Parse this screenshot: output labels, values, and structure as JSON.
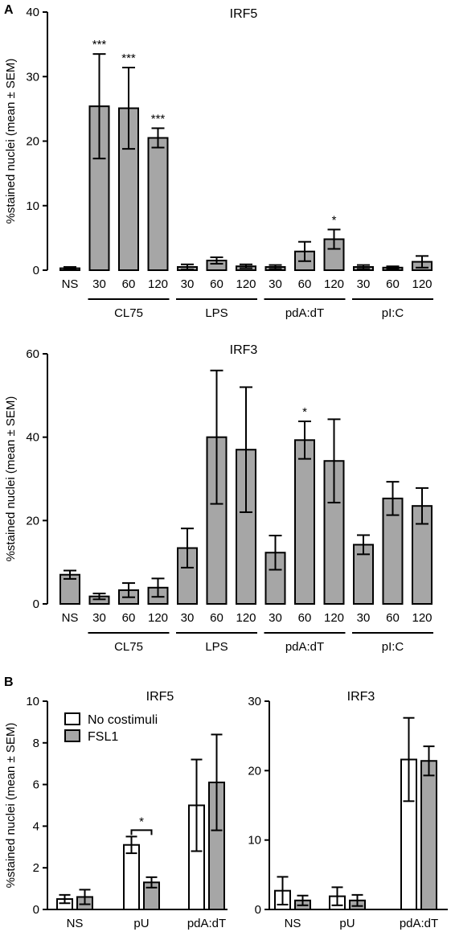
{
  "colors": {
    "gray": "#a6a6a6",
    "white": "#ffffff",
    "stroke": "#000000"
  },
  "panel_labels": {
    "A": "A",
    "B": "B"
  },
  "chart_data": [
    {
      "type": "bar",
      "title": "IRF5",
      "ylabel": "%stained nuclei (mean ± SEM)",
      "ylim": [
        0,
        40
      ],
      "yticks": [
        0,
        10,
        20,
        30,
        40
      ],
      "categories": [
        "NS",
        "30",
        "60",
        "120",
        "30",
        "60",
        "120",
        "30",
        "60",
        "120",
        "30",
        "60",
        "120"
      ],
      "values": [
        0.3,
        25.4,
        25.1,
        20.5,
        0.5,
        1.5,
        0.6,
        0.5,
        2.9,
        4.8,
        0.5,
        0.4,
        1.3
      ],
      "errors": [
        0.2,
        8.1,
        6.3,
        1.5,
        0.4,
        0.5,
        0.3,
        0.3,
        1.5,
        1.5,
        0.3,
        0.2,
        0.9
      ],
      "significance": [
        "",
        "***",
        "***",
        "***",
        "",
        "",
        "",
        "",
        "",
        "*",
        "",
        "",
        ""
      ],
      "groups": [
        {
          "label": "CL75",
          "start": 1,
          "end": 3
        },
        {
          "label": "LPS",
          "start": 4,
          "end": 6
        },
        {
          "label": "pdA:dT",
          "start": 7,
          "end": 9
        },
        {
          "label": "pI:C",
          "start": 10,
          "end": 12
        }
      ]
    },
    {
      "type": "bar",
      "title": "IRF3",
      "ylabel": "%stained nuclei (mean ± SEM)",
      "ylim": [
        0,
        60
      ],
      "yticks": [
        0,
        20,
        40,
        60
      ],
      "categories": [
        "NS",
        "30",
        "60",
        "120",
        "30",
        "60",
        "120",
        "30",
        "60",
        "120",
        "30",
        "60",
        "120"
      ],
      "values": [
        7,
        1.8,
        3.3,
        3.9,
        13.4,
        40,
        37,
        12.3,
        39.3,
        34.3,
        14.2,
        25.3,
        23.5
      ],
      "errors": [
        1.0,
        0.7,
        1.7,
        2.2,
        4.7,
        16,
        15,
        4.1,
        4.5,
        10,
        2.3,
        4.0,
        4.3
      ],
      "significance": [
        "",
        "",
        "",
        "",
        "",
        "",
        "",
        "",
        "*",
        "",
        "",
        "",
        ""
      ],
      "groups": [
        {
          "label": "CL75",
          "start": 1,
          "end": 3
        },
        {
          "label": "LPS",
          "start": 4,
          "end": 6
        },
        {
          "label": "pdA:dT",
          "start": 7,
          "end": 9
        },
        {
          "label": "pI:C",
          "start": 10,
          "end": 12
        }
      ]
    },
    {
      "type": "bar",
      "title": "IRF5",
      "ylabel": "%stained nuclei (mean ± SEM)",
      "ylim": [
        0,
        10
      ],
      "yticks": [
        0,
        2,
        4,
        6,
        8,
        10
      ],
      "categories": [
        "NS",
        "pU",
        "pdA:dT"
      ],
      "series": [
        {
          "name": "No costimuli",
          "values": [
            0.5,
            3.1,
            5.0
          ],
          "errors": [
            0.2,
            0.4,
            2.2
          ]
        },
        {
          "name": "FSL1",
          "values": [
            0.6,
            1.3,
            6.1
          ],
          "errors": [
            0.35,
            0.25,
            2.3
          ]
        }
      ],
      "legend": "top-left",
      "annotation": {
        "text": "*",
        "category": "pU"
      }
    },
    {
      "type": "bar",
      "title": "IRF3",
      "ylabel": "",
      "ylim": [
        0,
        30
      ],
      "yticks": [
        0,
        10,
        20,
        30
      ],
      "categories": [
        "NS",
        "pU",
        "pdA:dT"
      ],
      "series": [
        {
          "name": "No costimuli",
          "values": [
            2.7,
            1.9,
            21.6
          ],
          "errors": [
            2.0,
            1.3,
            6.0
          ]
        },
        {
          "name": "FSL1",
          "values": [
            1.3,
            1.3,
            21.4
          ],
          "errors": [
            0.7,
            0.8,
            2.1
          ]
        }
      ]
    }
  ]
}
